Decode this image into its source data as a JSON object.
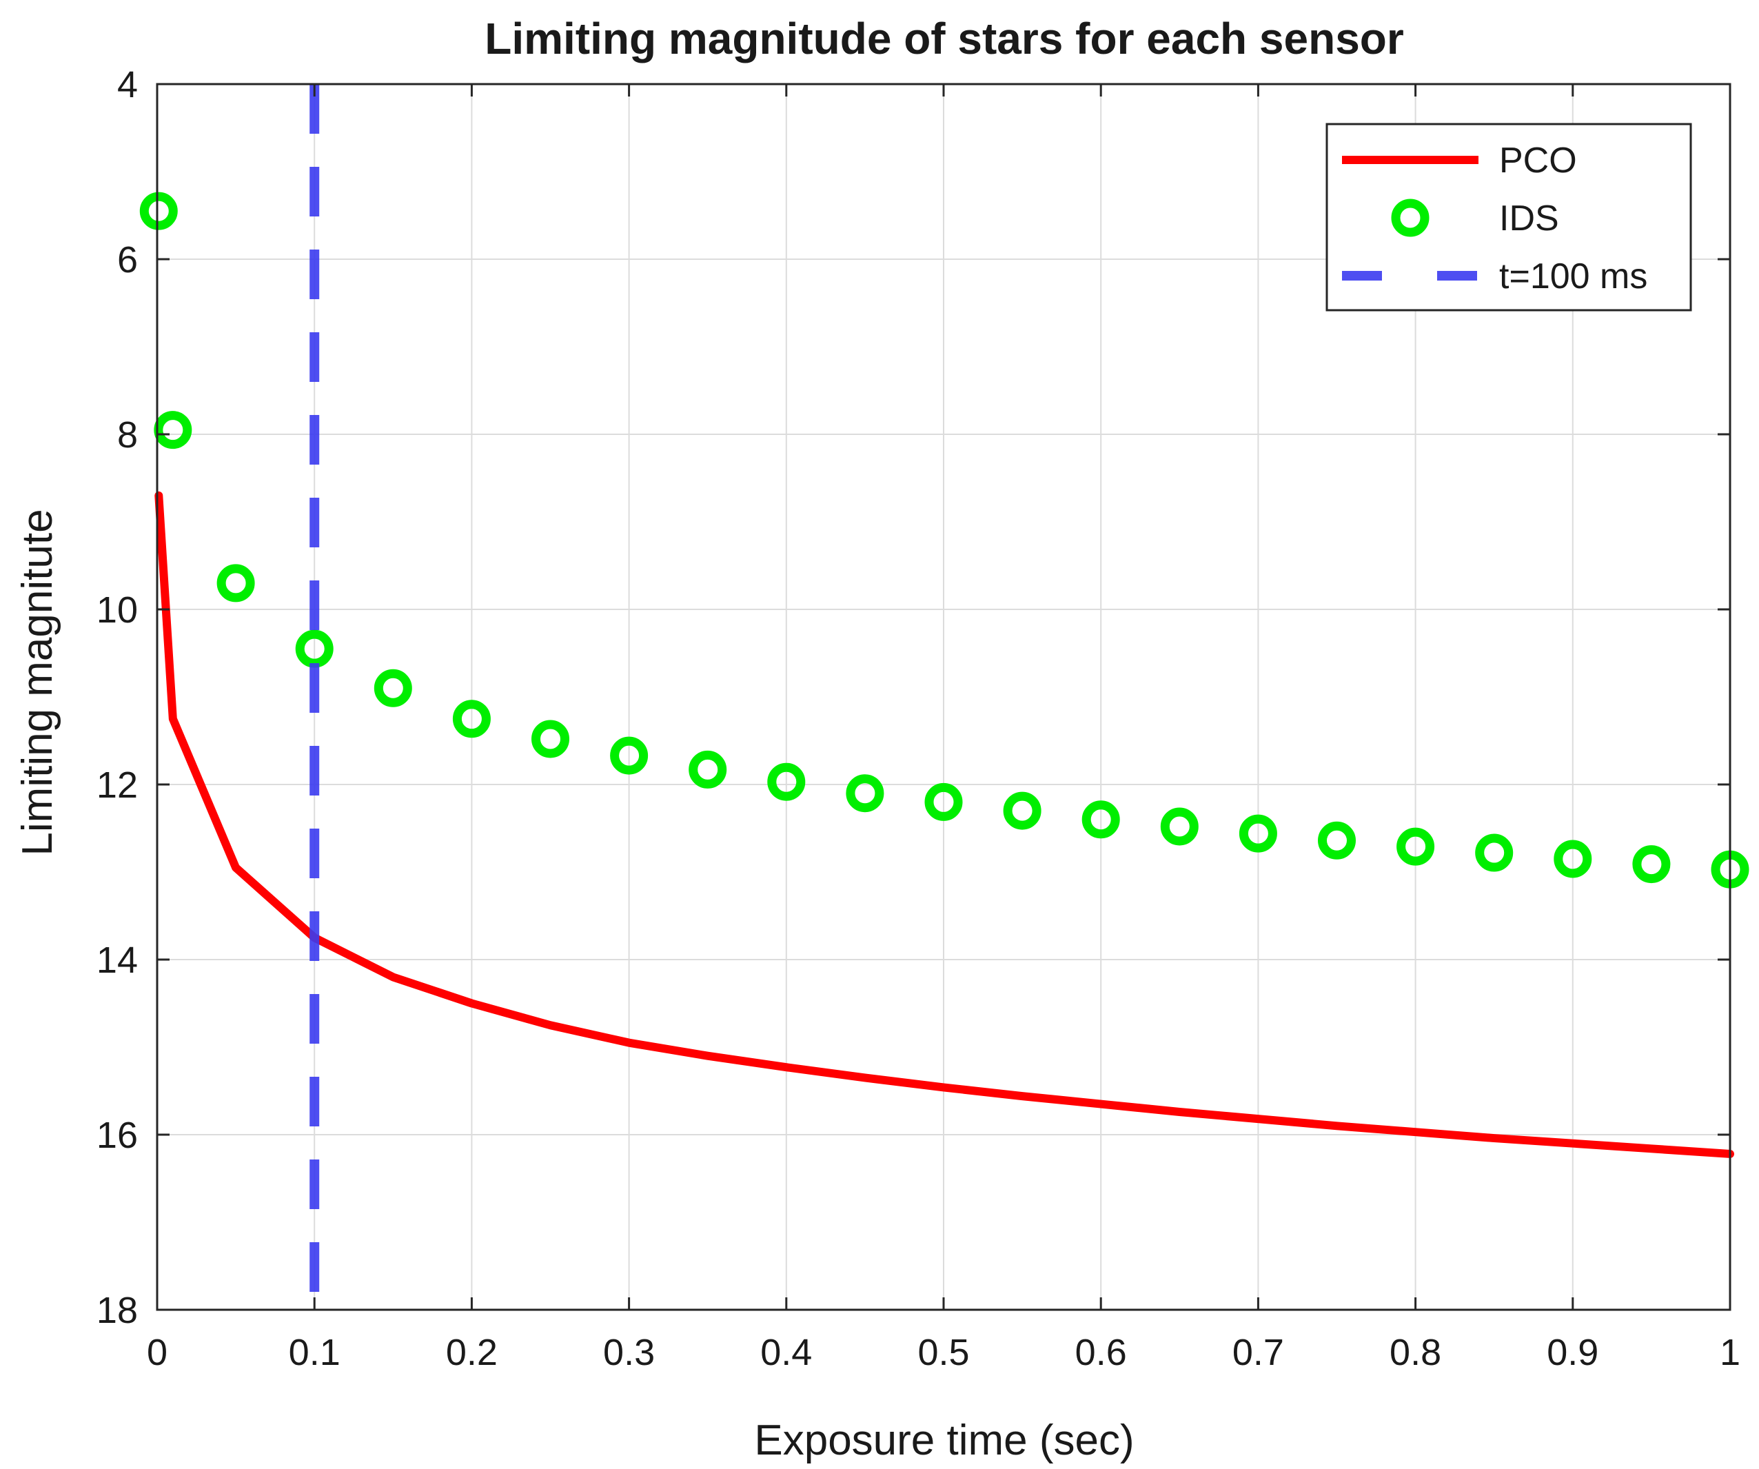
{
  "chart_data": {
    "type": "line",
    "title": "Limiting magnitude of stars for each sensor",
    "xlabel": "Exposure time (sec)",
    "ylabel": "Limiting magnitute",
    "xlim": [
      0,
      1
    ],
    "ylim": [
      4,
      18
    ],
    "y_reversed": true,
    "grid": true,
    "legend_position": "top-right",
    "x_ticks": [
      0,
      0.1,
      0.2,
      0.3,
      0.4,
      0.5,
      0.6,
      0.7,
      0.8,
      0.9,
      1
    ],
    "x_tick_labels": [
      "0",
      "0.1",
      "0.2",
      "0.3",
      "0.4",
      "0.5",
      "0.6",
      "0.7",
      "0.8",
      "0.9",
      "1"
    ],
    "y_ticks": [
      4,
      6,
      8,
      10,
      12,
      14,
      16,
      18
    ],
    "y_tick_labels": [
      "4",
      "6",
      "8",
      "10",
      "12",
      "14",
      "16",
      "18"
    ],
    "series": [
      {
        "name": "PCO",
        "style": "solid-line",
        "color": "#ff0000",
        "x": [
          0.001,
          0.01,
          0.05,
          0.1,
          0.15,
          0.2,
          0.25,
          0.3,
          0.35,
          0.4,
          0.45,
          0.5,
          0.55,
          0.6,
          0.65,
          0.7,
          0.75,
          0.8,
          0.85,
          0.9,
          0.95,
          1.0
        ],
        "y": [
          8.7,
          11.25,
          12.95,
          13.75,
          14.2,
          14.5,
          14.75,
          14.95,
          15.1,
          15.23,
          15.35,
          15.46,
          15.56,
          15.65,
          15.74,
          15.82,
          15.9,
          15.97,
          16.04,
          16.1,
          16.16,
          16.22
        ]
      },
      {
        "name": "IDS",
        "style": "circle-markers",
        "color": "#00ee00",
        "x": [
          0.001,
          0.01,
          0.05,
          0.1,
          0.15,
          0.2,
          0.25,
          0.3,
          0.35,
          0.4,
          0.45,
          0.5,
          0.55,
          0.6,
          0.65,
          0.7,
          0.75,
          0.8,
          0.85,
          0.9,
          0.95,
          1.0
        ],
        "y": [
          5.45,
          7.95,
          9.7,
          10.45,
          10.9,
          11.25,
          11.48,
          11.67,
          11.83,
          11.97,
          12.1,
          12.2,
          12.3,
          12.4,
          12.48,
          12.56,
          12.64,
          12.71,
          12.78,
          12.85,
          12.91,
          12.97
        ]
      },
      {
        "name": "t=100 ms",
        "style": "dashed-vertical-line",
        "color": "#3b3bf0",
        "x": [
          0.1,
          0.1
        ],
        "y": [
          4,
          17.8
        ]
      }
    ]
  }
}
